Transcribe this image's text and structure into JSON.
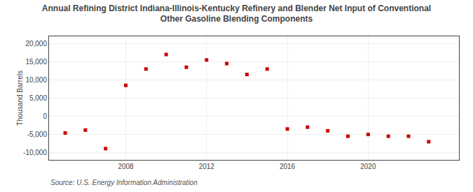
{
  "chart_data": {
    "type": "scatter",
    "title": "Annual Refining District Indiana-Illinois-Kentucky Refinery and Blender Net Input of Conventional\nOther Gasoline Blending Components",
    "ylabel": "Thousand Barrels",
    "annotations": [
      "Source: U.S. Energy Information Administration"
    ],
    "x": [
      2005,
      2006,
      2007,
      2008,
      2009,
      2010,
      2011,
      2012,
      2013,
      2014,
      2015,
      2016,
      2017,
      2018,
      2019,
      2020,
      2021,
      2022,
      2023
    ],
    "values": [
      -4600,
      -3800,
      -8900,
      8500,
      13000,
      17000,
      13500,
      15500,
      14500,
      11500,
      13000,
      -3500,
      -3000,
      -4000,
      -5500,
      -5000,
      -5500,
      -5500,
      -7000
    ],
    "color": "#cc0000",
    "marker": "square",
    "xlim": [
      2004.2,
      2024.5
    ],
    "xticks": [
      2008,
      2012,
      2016,
      2020
    ],
    "ylim": [
      -12000,
      22000
    ],
    "yticks": [
      {
        "value": -10000,
        "label": "-10,000"
      },
      {
        "value": -5000,
        "label": "-5,000"
      },
      0,
      {
        "value": 5000,
        "label": "5,000"
      },
      {
        "value": 10000,
        "label": "10,000"
      },
      {
        "value": 15000,
        "label": "15,000"
      },
      {
        "value": 20000,
        "label": "20,000"
      }
    ],
    "grid": true
  }
}
